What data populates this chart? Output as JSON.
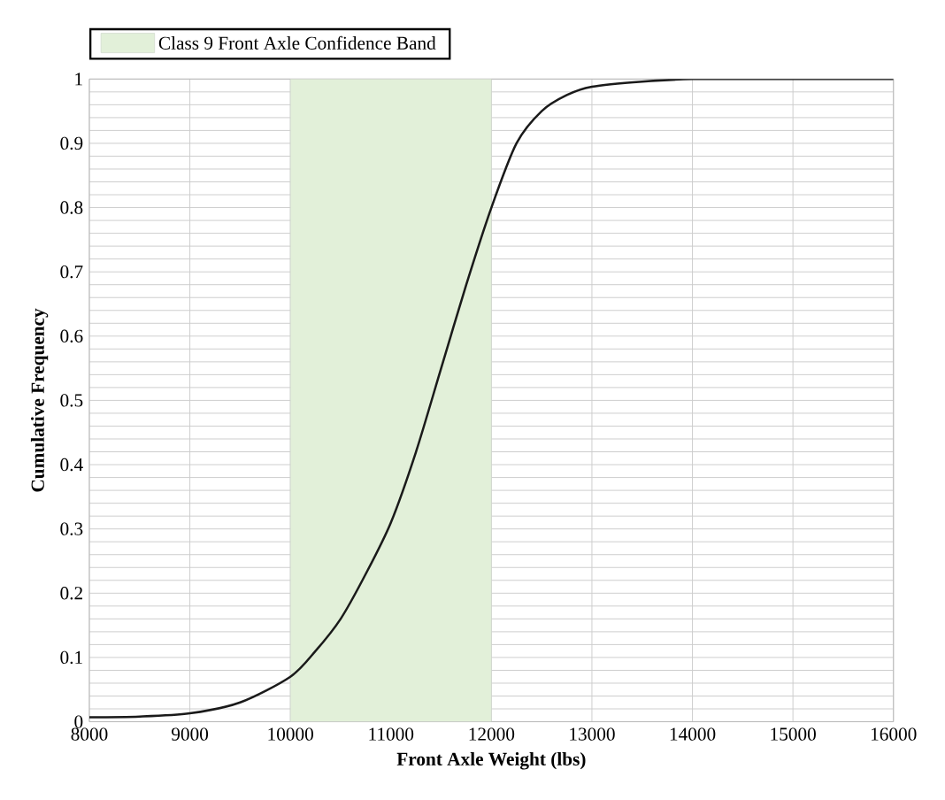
{
  "chart_data": {
    "type": "line",
    "xlabel": "Front Axle Weight (lbs)",
    "ylabel": "Cumulative Frequency",
    "x": [
      8000,
      8500,
      9000,
      9500,
      10000,
      10250,
      10500,
      10750,
      11000,
      11250,
      11500,
      11750,
      12000,
      12250,
      12500,
      12750,
      13000,
      13500,
      14000,
      15000,
      16000
    ],
    "series": [
      {
        "color": "#1a1a1a",
        "values": [
          0.007,
          0.008,
          0.013,
          0.03,
          0.07,
          0.11,
          0.16,
          0.23,
          0.31,
          0.42,
          0.55,
          0.68,
          0.8,
          0.9,
          0.95,
          0.975,
          0.988,
          0.996,
          1.0,
          1.0,
          1.0
        ]
      }
    ],
    "bands": [
      {
        "axis": "x",
        "from": 10000,
        "to": 12000,
        "label": "Class 9 Front Axle Confidence Band",
        "color": "#e2f0d9"
      }
    ],
    "xlim": [
      8000,
      16000
    ],
    "ylim": [
      0,
      1
    ],
    "xticks": [
      8000,
      9000,
      10000,
      11000,
      12000,
      13000,
      14000,
      15000,
      16000
    ],
    "yticks": [
      0,
      {
        "value": 0.02,
        "label": null
      },
      {
        "value": 0.04,
        "label": null
      },
      {
        "value": 0.06,
        "label": null
      },
      {
        "value": 0.08,
        "label": null
      },
      0.1,
      {
        "value": 0.12,
        "label": null
      },
      {
        "value": 0.14,
        "label": null
      },
      {
        "value": 0.16,
        "label": null
      },
      {
        "value": 0.18,
        "label": null
      },
      0.2,
      {
        "value": 0.22,
        "label": null
      },
      {
        "value": 0.24,
        "label": null
      },
      {
        "value": 0.26,
        "label": null
      },
      {
        "value": 0.28,
        "label": null
      },
      0.3,
      {
        "value": 0.32,
        "label": null
      },
      {
        "value": 0.34,
        "label": null
      },
      {
        "value": 0.36,
        "label": null
      },
      {
        "value": 0.38,
        "label": null
      },
      0.4,
      {
        "value": 0.42,
        "label": null
      },
      {
        "value": 0.44,
        "label": null
      },
      {
        "value": 0.46,
        "label": null
      },
      {
        "value": 0.48,
        "label": null
      },
      0.5,
      {
        "value": 0.52,
        "label": null
      },
      {
        "value": 0.54,
        "label": null
      },
      {
        "value": 0.56,
        "label": null
      },
      {
        "value": 0.58,
        "label": null
      },
      0.6,
      {
        "value": 0.62,
        "label": null
      },
      {
        "value": 0.64,
        "label": null
      },
      {
        "value": 0.66,
        "label": null
      },
      {
        "value": 0.68,
        "label": null
      },
      0.7,
      {
        "value": 0.72,
        "label": null
      },
      {
        "value": 0.74,
        "label": null
      },
      {
        "value": 0.76,
        "label": null
      },
      {
        "value": 0.78,
        "label": null
      },
      0.8,
      {
        "value": 0.82,
        "label": null
      },
      {
        "value": 0.84,
        "label": null
      },
      {
        "value": 0.86,
        "label": null
      },
      {
        "value": 0.88,
        "label": null
      },
      0.9,
      {
        "value": 0.92,
        "label": null
      },
      {
        "value": 0.94,
        "label": null
      },
      {
        "value": 0.96,
        "label": null
      },
      {
        "value": 0.98,
        "label": null
      },
      1
    ],
    "grid": true,
    "legend": "top left",
    "marker": "none",
    "line_style": "solid"
  }
}
